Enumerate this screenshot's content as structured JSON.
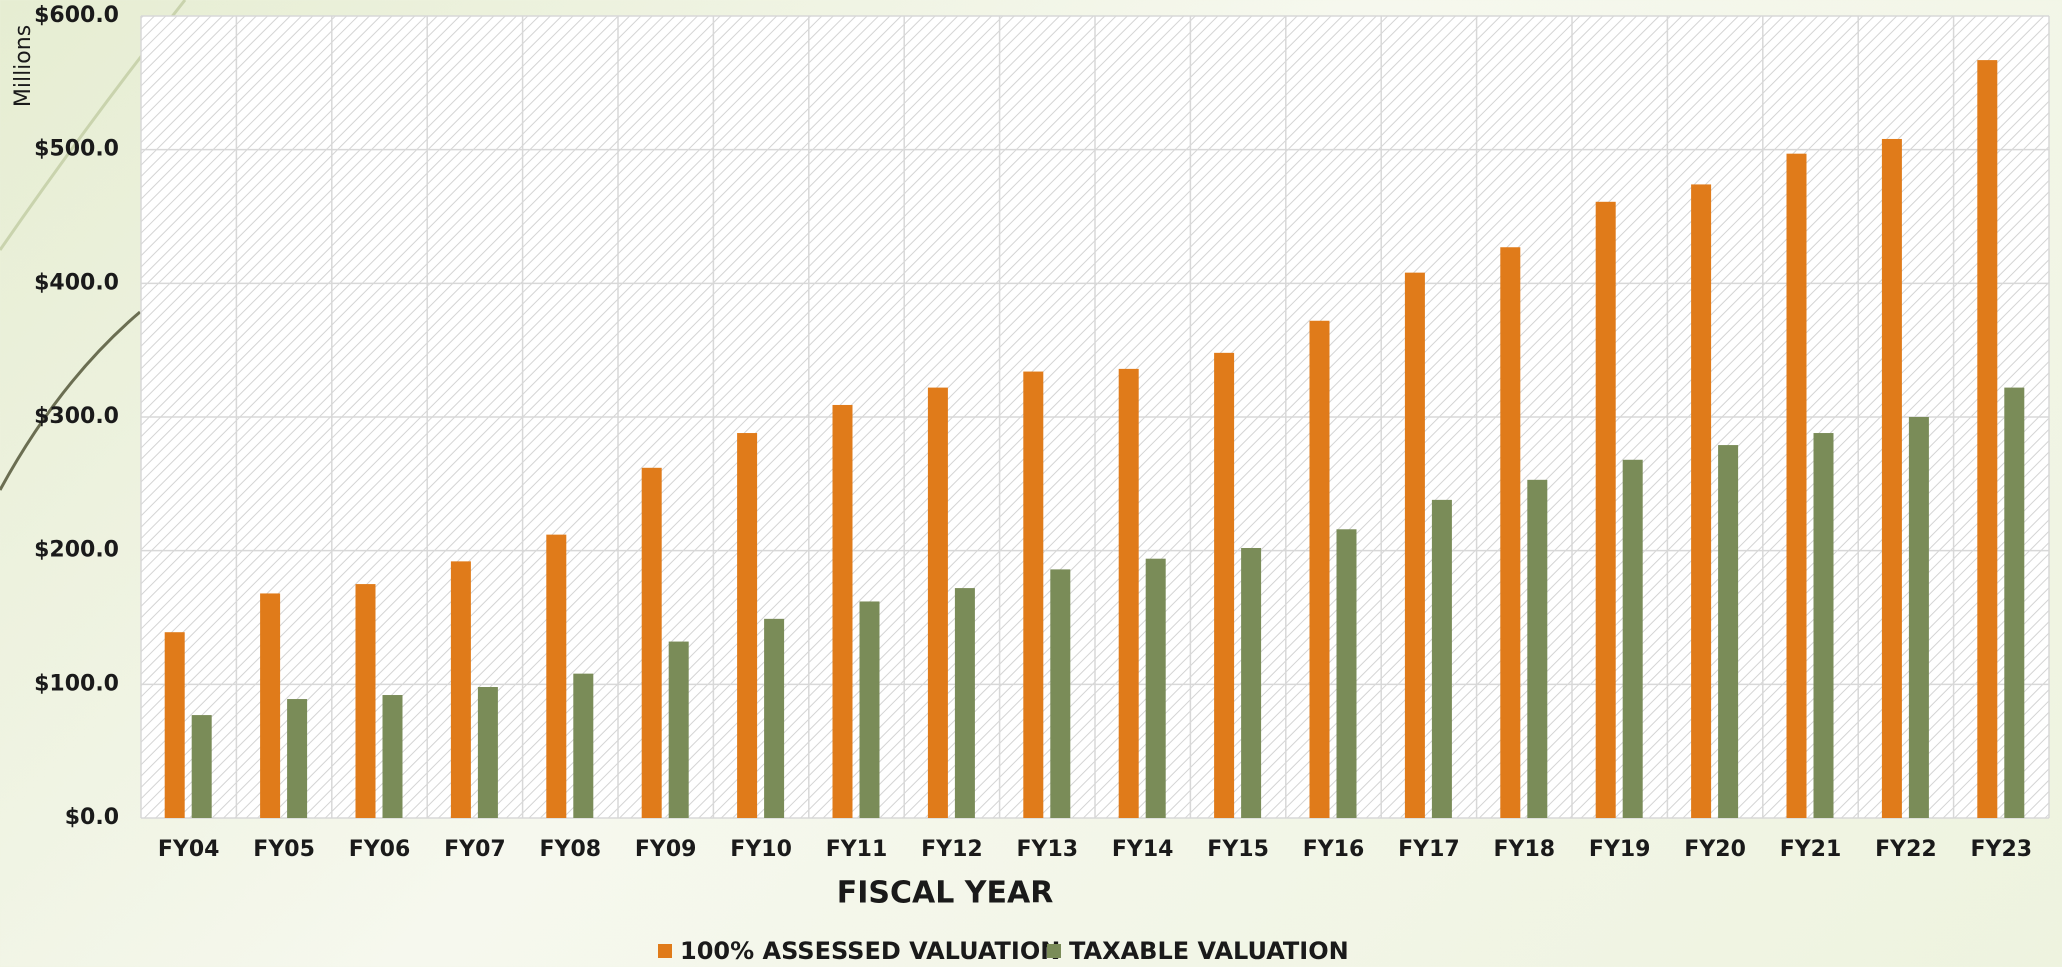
{
  "chart_data": {
    "type": "bar",
    "y_axis_label": "Millions",
    "x_axis_label": "FISCAL YEAR",
    "categories": [
      "FY04",
      "FY05",
      "FY06",
      "FY07",
      "FY08",
      "FY09",
      "FY10",
      "FY11",
      "FY12",
      "FY13",
      "FY14",
      "FY15",
      "FY16",
      "FY17",
      "FY18",
      "FY19",
      "FY20",
      "FY21",
      "FY22",
      "FY23"
    ],
    "series": [
      {
        "name": "100% ASSESSED VALUATION",
        "color": "#e07b1a",
        "values": [
          139,
          168,
          175,
          192,
          212,
          262,
          288,
          309,
          322,
          334,
          336,
          348,
          372,
          408,
          427,
          461,
          474,
          497,
          508,
          567
        ]
      },
      {
        "name": "TAXABLE VALUATION",
        "color": "#7a8c58",
        "values": [
          77,
          89,
          92,
          98,
          108,
          132,
          149,
          162,
          172,
          186,
          194,
          202,
          216,
          238,
          253,
          268,
          279,
          288,
          300,
          322
        ]
      }
    ],
    "ylim": [
      0,
      600
    ],
    "yticks": [
      {
        "value": 0,
        "label": "$0.0"
      },
      {
        "value": 100,
        "label": "$100.0"
      },
      {
        "value": 200,
        "label": "$200.0"
      },
      {
        "value": 300,
        "label": "$300.0"
      },
      {
        "value": 400,
        "label": "$400.0"
      },
      {
        "value": 500,
        "label": "$500.0"
      },
      {
        "value": 600,
        "label": "$600.0"
      }
    ],
    "grid": true,
    "legend": "bottom"
  }
}
